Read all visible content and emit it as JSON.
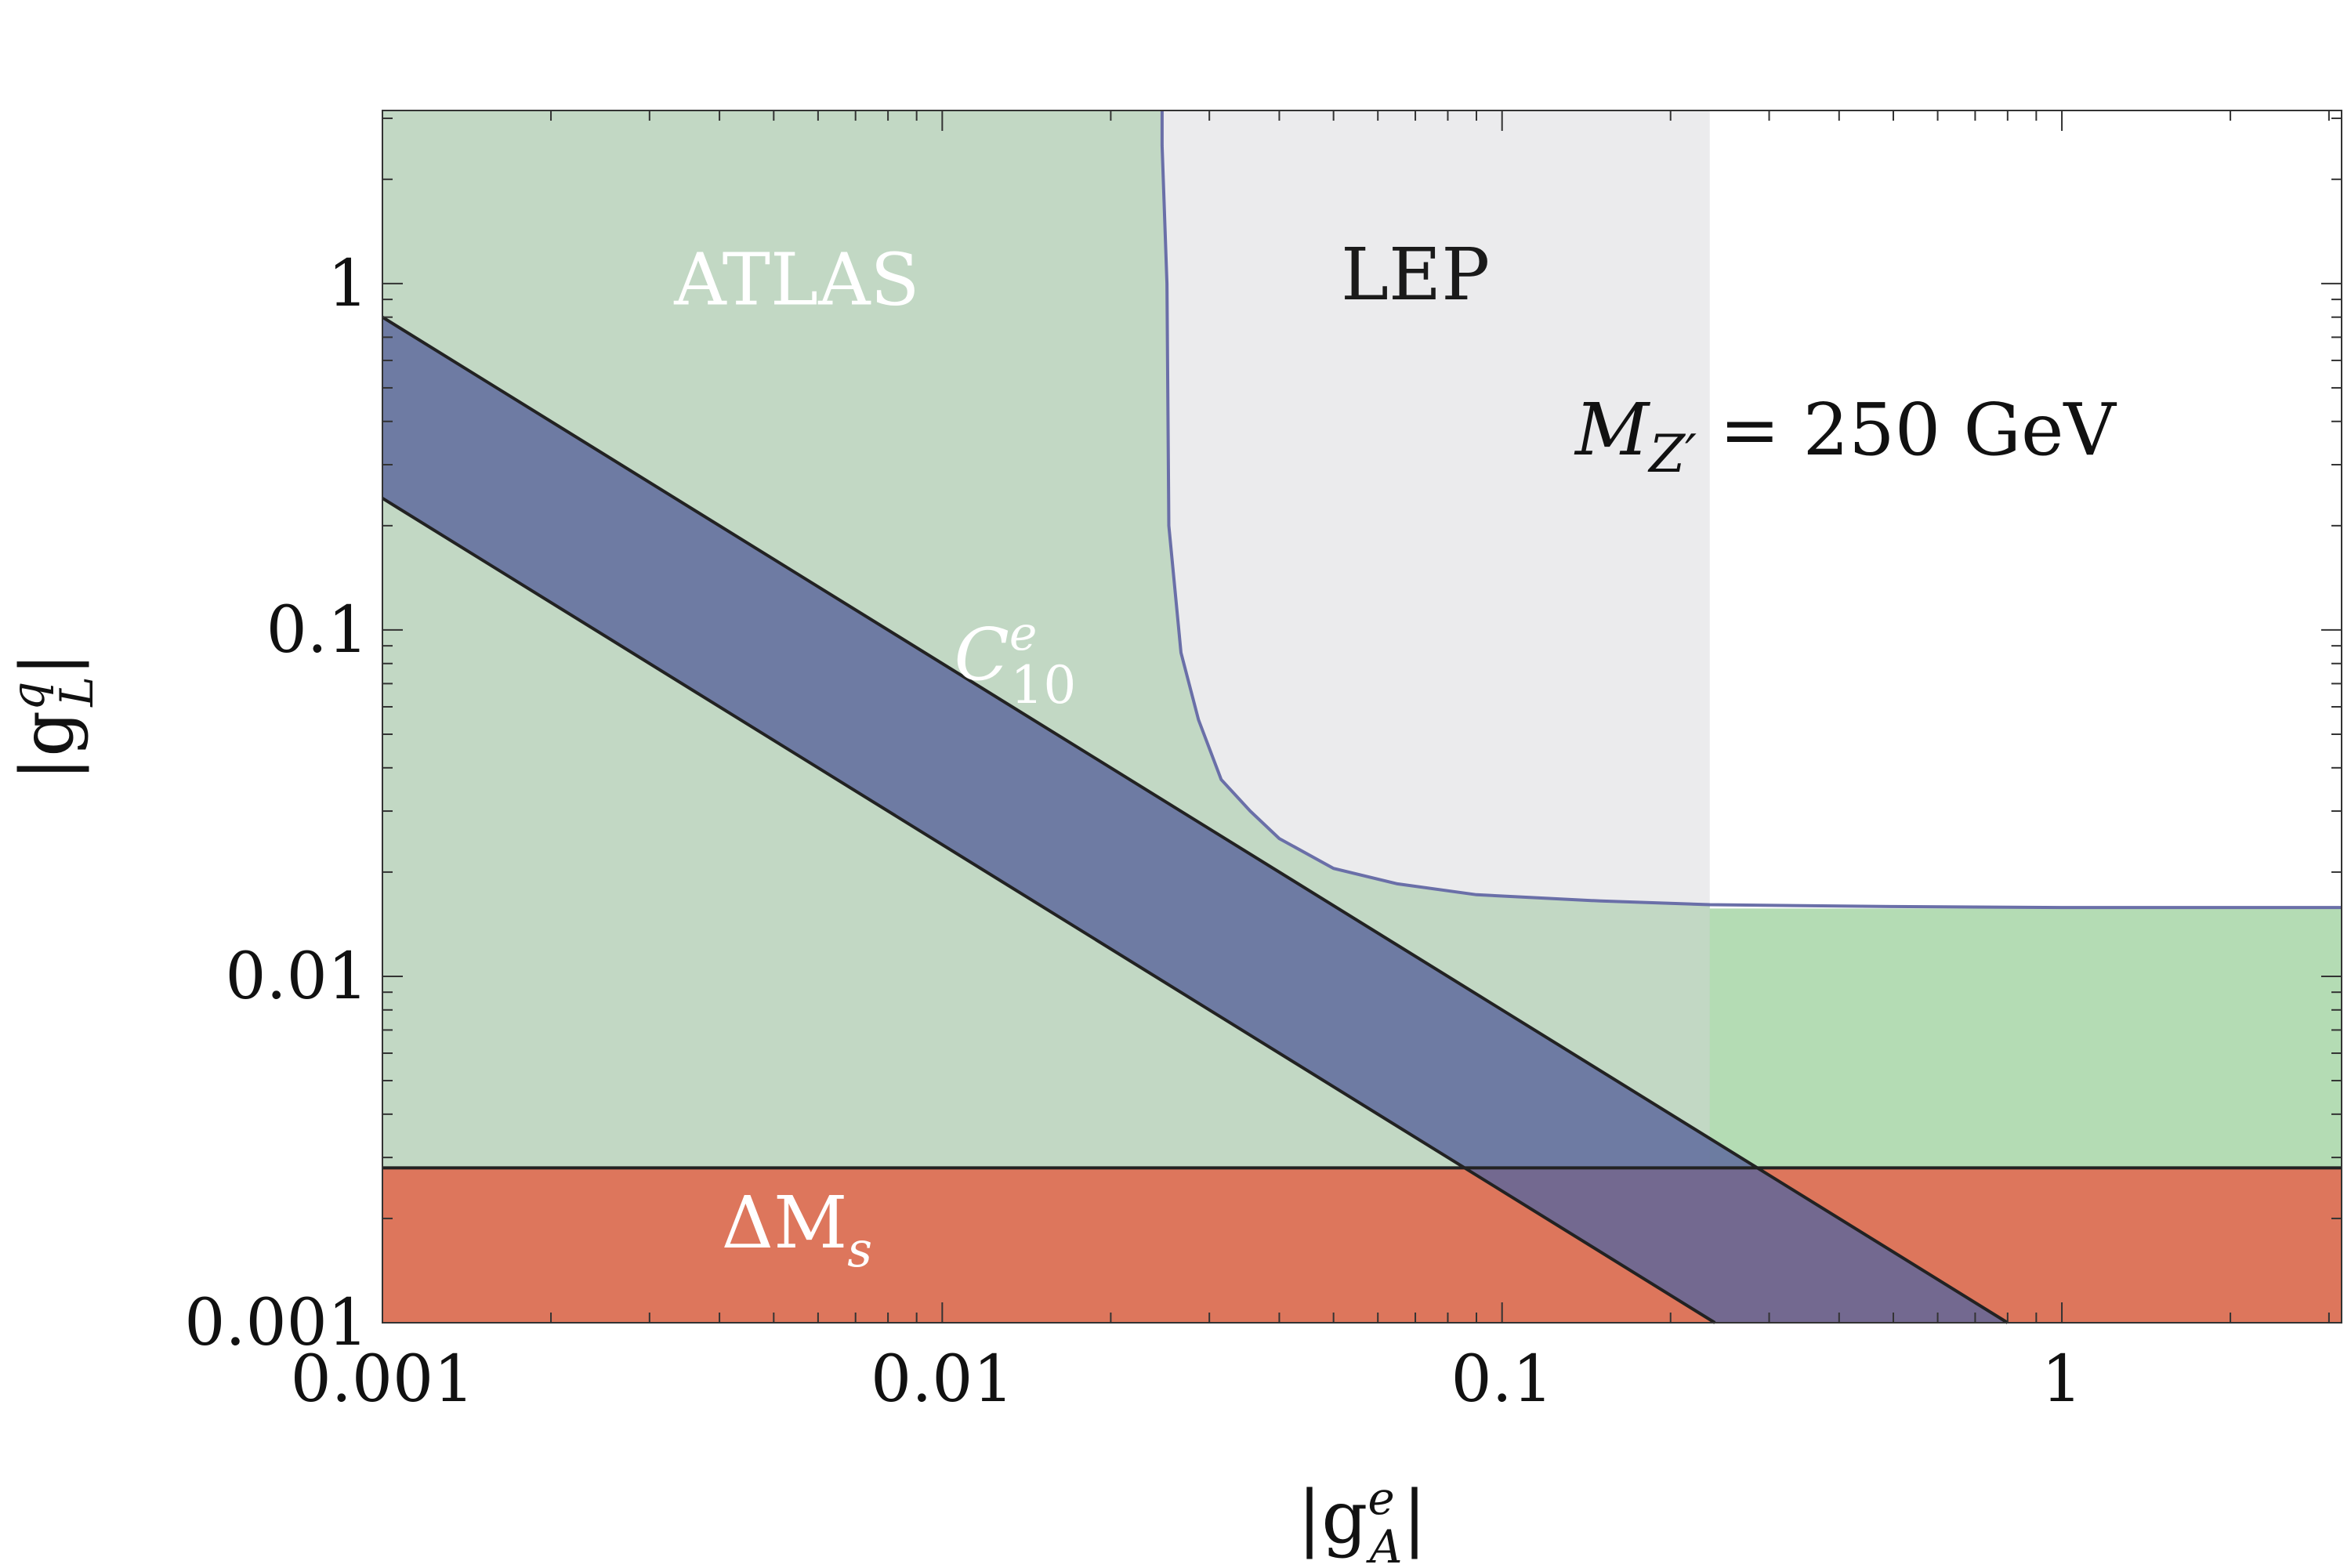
{
  "chart_data": {
    "type": "area",
    "x_scale": "log",
    "y_scale": "log",
    "xlim": [
      0.001,
      3.16
    ],
    "ylim": [
      0.001,
      3.16
    ],
    "x_ticks": [
      {
        "value": 0.001,
        "label": "0.001"
      },
      {
        "value": 0.01,
        "label": "0.01"
      },
      {
        "value": 0.1,
        "label": "0.1"
      },
      {
        "value": 1,
        "label": "1"
      }
    ],
    "y_ticks": [
      {
        "value": 0.001,
        "label": "0.001"
      },
      {
        "value": 0.01,
        "label": "0.01"
      },
      {
        "value": 0.1,
        "label": "0.1"
      },
      {
        "value": 1,
        "label": "1"
      }
    ],
    "xlabel": {
      "base": "|g",
      "sup": "e",
      "sub": "A",
      "close": "|"
    },
    "ylabel": {
      "base": "|g",
      "sup": "q",
      "sub": "L",
      "close": "|"
    },
    "annotation": {
      "m": "M",
      "sub": "Z′",
      "rest": " = 250 GeV"
    },
    "regions": [
      {
        "name": "ATLAS",
        "label": "ATLAS",
        "label_at": [
          0.0055,
          0.87
        ],
        "label_color": "#ffffff",
        "color": "#b4dcb4",
        "description_points": [
          [
            0.001,
            0.0157
          ],
          [
            3.16,
            0.0157
          ]
        ],
        "fill_y_range": [
          0.0028,
          0.0157
        ]
      },
      {
        "name": "LEP",
        "label": "LEP",
        "label_at": [
          0.07,
          0.9
        ],
        "label_color": "#1a1a1a",
        "color": "#d2d3d6",
        "x_max": 0.235
      },
      {
        "name": "C10e",
        "label": {
          "base": "C",
          "sup": "e",
          "sub": "10"
        },
        "label_at": [
          0.0135,
          0.072
        ],
        "label_color": "#ffffff",
        "color": "#5c669c",
        "upper_line": [
          [
            0.001,
            0.8
          ],
          [
            0.8,
            0.001
          ]
        ],
        "lower_line": [
          [
            0.001,
            0.24
          ],
          [
            0.24,
            0.001
          ]
        ]
      },
      {
        "name": "DeltaMs",
        "label": {
          "base": "ΔM",
          "sub": "s"
        },
        "label_at": [
          0.0055,
          0.00165
        ],
        "label_color": "#ffffff",
        "color": "#dd765c",
        "y_max": 0.0028
      }
    ],
    "lep_boundary": [
      [
        0.0247,
        3.16
      ],
      [
        0.0247,
        2.5
      ],
      [
        0.0252,
        1.0
      ],
      [
        0.0254,
        0.2
      ],
      [
        0.0267,
        0.086
      ],
      [
        0.0287,
        0.055
      ],
      [
        0.0315,
        0.037
      ],
      [
        0.0355,
        0.03
      ],
      [
        0.04,
        0.025
      ],
      [
        0.05,
        0.0205
      ],
      [
        0.065,
        0.0185
      ],
      [
        0.09,
        0.0172
      ],
      [
        0.15,
        0.0165
      ],
      [
        0.235,
        0.0161
      ],
      [
        0.5,
        0.0159
      ],
      [
        1.0,
        0.0158
      ],
      [
        3.16,
        0.0158
      ]
    ]
  }
}
